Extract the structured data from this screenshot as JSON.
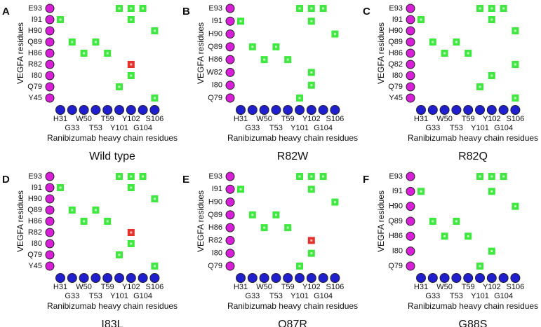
{
  "chart_data": [
    {
      "type": "contact",
      "panel": "A",
      "title": "Wild type",
      "x_label": "Ranibizumab heavy chain residues",
      "y_label": "VEGFA residues",
      "x_color": "#1f1fd0",
      "y_color": "#d81ed8",
      "x_categories": [
        "H31",
        "G33",
        "W50",
        "T53",
        "T59",
        "Y101",
        "Y102",
        "G104",
        "S106"
      ],
      "y_categories": [
        "E93",
        "I91",
        "H90",
        "Q89",
        "H86",
        "R82",
        "I80",
        "Q79",
        "Y45"
      ],
      "contacts": [
        {
          "x": "Y101",
          "y": "E93",
          "color": "#3fe83f"
        },
        {
          "x": "Y102",
          "y": "E93",
          "color": "#3fe83f"
        },
        {
          "x": "G104",
          "y": "E93",
          "color": "#3fe83f"
        },
        {
          "x": "H31",
          "y": "I91",
          "color": "#3fe83f"
        },
        {
          "x": "Y102",
          "y": "I91",
          "color": "#3fe83f"
        },
        {
          "x": "S106",
          "y": "H90",
          "color": "#3fe83f"
        },
        {
          "x": "G33",
          "y": "Q89",
          "color": "#3fe83f"
        },
        {
          "x": "T53",
          "y": "Q89",
          "color": "#3fe83f"
        },
        {
          "x": "W50",
          "y": "H86",
          "color": "#3fe83f"
        },
        {
          "x": "T59",
          "y": "H86",
          "color": "#3fe83f"
        },
        {
          "x": "Y102",
          "y": "R82",
          "color": "#e8302a"
        },
        {
          "x": "Y102",
          "y": "I80",
          "color": "#3fe83f"
        },
        {
          "x": "Y101",
          "y": "Q79",
          "color": "#3fe83f"
        },
        {
          "x": "S106",
          "y": "Y45",
          "color": "#3fe83f"
        }
      ]
    },
    {
      "type": "contact",
      "panel": "B",
      "title": "R82W",
      "x_label": "Ranibizumab heavy chain residues",
      "y_label": "VEGFA residues",
      "x_color": "#1f1fd0",
      "y_color": "#d81ed8",
      "x_categories": [
        "H31",
        "G33",
        "W50",
        "T53",
        "T59",
        "Y101",
        "Y102",
        "G104",
        "S106"
      ],
      "y_categories": [
        "E93",
        "I91",
        "H90",
        "Q89",
        "H86",
        "W82",
        "I80",
        "Q79"
      ],
      "contacts": [
        {
          "x": "Y101",
          "y": "E93",
          "color": "#3fe83f"
        },
        {
          "x": "Y102",
          "y": "E93",
          "color": "#3fe83f"
        },
        {
          "x": "G104",
          "y": "E93",
          "color": "#3fe83f"
        },
        {
          "x": "H31",
          "y": "I91",
          "color": "#3fe83f"
        },
        {
          "x": "Y102",
          "y": "I91",
          "color": "#3fe83f"
        },
        {
          "x": "S106",
          "y": "H90",
          "color": "#3fe83f"
        },
        {
          "x": "G33",
          "y": "Q89",
          "color": "#3fe83f"
        },
        {
          "x": "T53",
          "y": "Q89",
          "color": "#3fe83f"
        },
        {
          "x": "W50",
          "y": "H86",
          "color": "#3fe83f"
        },
        {
          "x": "T59",
          "y": "H86",
          "color": "#3fe83f"
        },
        {
          "x": "Y102",
          "y": "W82",
          "color": "#3fe83f"
        },
        {
          "x": "Y102",
          "y": "I80",
          "color": "#3fe83f"
        },
        {
          "x": "Y101",
          "y": "Q79",
          "color": "#3fe83f"
        }
      ]
    },
    {
      "type": "contact",
      "panel": "C",
      "title": "R82Q",
      "x_label": "Ranibizumab heavy chain residues",
      "y_label": "VEGFA residues",
      "x_color": "#1f1fd0",
      "y_color": "#d81ed8",
      "x_categories": [
        "H31",
        "G33",
        "W50",
        "T53",
        "T59",
        "Y101",
        "Y102",
        "G104",
        "S106"
      ],
      "y_categories": [
        "E93",
        "I91",
        "H90",
        "Q89",
        "H86",
        "Q82",
        "I80",
        "Q79",
        "Y45"
      ],
      "contacts": [
        {
          "x": "Y101",
          "y": "E93",
          "color": "#3fe83f"
        },
        {
          "x": "Y102",
          "y": "E93",
          "color": "#3fe83f"
        },
        {
          "x": "G104",
          "y": "E93",
          "color": "#3fe83f"
        },
        {
          "x": "H31",
          "y": "I91",
          "color": "#3fe83f"
        },
        {
          "x": "Y102",
          "y": "I91",
          "color": "#3fe83f"
        },
        {
          "x": "S106",
          "y": "H90",
          "color": "#3fe83f"
        },
        {
          "x": "G33",
          "y": "Q89",
          "color": "#3fe83f"
        },
        {
          "x": "T53",
          "y": "Q89",
          "color": "#3fe83f"
        },
        {
          "x": "W50",
          "y": "H86",
          "color": "#3fe83f"
        },
        {
          "x": "T59",
          "y": "H86",
          "color": "#3fe83f"
        },
        {
          "x": "S106",
          "y": "Q82",
          "color": "#3fe83f"
        },
        {
          "x": "Y102",
          "y": "I80",
          "color": "#3fe83f"
        },
        {
          "x": "Y101",
          "y": "Q79",
          "color": "#3fe83f"
        },
        {
          "x": "S106",
          "y": "Y45",
          "color": "#3fe83f"
        }
      ]
    },
    {
      "type": "contact",
      "panel": "D",
      "title": "I83L",
      "x_label": "Ranibizumab heavy chain residues",
      "y_label": "VEGFA residues",
      "x_color": "#1f1fd0",
      "y_color": "#d81ed8",
      "x_categories": [
        "H31",
        "G33",
        "W50",
        "T53",
        "T59",
        "Y101",
        "Y102",
        "G104",
        "S106"
      ],
      "y_categories": [
        "E93",
        "I91",
        "H90",
        "Q89",
        "H86",
        "R82",
        "I80",
        "Q79",
        "Y45"
      ],
      "contacts": [
        {
          "x": "Y101",
          "y": "E93",
          "color": "#3fe83f"
        },
        {
          "x": "Y102",
          "y": "E93",
          "color": "#3fe83f"
        },
        {
          "x": "G104",
          "y": "E93",
          "color": "#3fe83f"
        },
        {
          "x": "H31",
          "y": "I91",
          "color": "#3fe83f"
        },
        {
          "x": "Y102",
          "y": "I91",
          "color": "#3fe83f"
        },
        {
          "x": "S106",
          "y": "H90",
          "color": "#3fe83f"
        },
        {
          "x": "G33",
          "y": "Q89",
          "color": "#3fe83f"
        },
        {
          "x": "T53",
          "y": "Q89",
          "color": "#3fe83f"
        },
        {
          "x": "W50",
          "y": "H86",
          "color": "#3fe83f"
        },
        {
          "x": "T59",
          "y": "H86",
          "color": "#3fe83f"
        },
        {
          "x": "Y102",
          "y": "R82",
          "color": "#e8302a"
        },
        {
          "x": "Y102",
          "y": "I80",
          "color": "#3fe83f"
        },
        {
          "x": "Y101",
          "y": "Q79",
          "color": "#3fe83f"
        },
        {
          "x": "S106",
          "y": "Y45",
          "color": "#3fe83f"
        }
      ]
    },
    {
      "type": "contact",
      "panel": "E",
      "title": "Q87R",
      "x_label": "Ranibizumab heavy chain residues",
      "y_label": "VEGFA residues",
      "x_color": "#1f1fd0",
      "y_color": "#d81ed8",
      "x_categories": [
        "H31",
        "G33",
        "W50",
        "T53",
        "T59",
        "Y101",
        "Y102",
        "G104",
        "S106"
      ],
      "y_categories": [
        "E93",
        "I91",
        "H90",
        "Q89",
        "H86",
        "R82",
        "I80",
        "Q79"
      ],
      "contacts": [
        {
          "x": "Y101",
          "y": "E93",
          "color": "#3fe83f"
        },
        {
          "x": "Y102",
          "y": "E93",
          "color": "#3fe83f"
        },
        {
          "x": "G104",
          "y": "E93",
          "color": "#3fe83f"
        },
        {
          "x": "H31",
          "y": "I91",
          "color": "#3fe83f"
        },
        {
          "x": "Y102",
          "y": "I91",
          "color": "#3fe83f"
        },
        {
          "x": "S106",
          "y": "H90",
          "color": "#3fe83f"
        },
        {
          "x": "G33",
          "y": "Q89",
          "color": "#3fe83f"
        },
        {
          "x": "T53",
          "y": "Q89",
          "color": "#3fe83f"
        },
        {
          "x": "W50",
          "y": "H86",
          "color": "#3fe83f"
        },
        {
          "x": "T59",
          "y": "H86",
          "color": "#3fe83f"
        },
        {
          "x": "Y102",
          "y": "R82",
          "color": "#e8302a"
        },
        {
          "x": "Y102",
          "y": "I80",
          "color": "#3fe83f"
        },
        {
          "x": "Y101",
          "y": "Q79",
          "color": "#3fe83f"
        }
      ]
    },
    {
      "type": "contact",
      "panel": "F",
      "title": "G88S",
      "x_label": "Ranibizumab heavy chain residues",
      "y_label": "VEGFA residues",
      "x_color": "#1f1fd0",
      "y_color": "#d81ed8",
      "x_categories": [
        "H31",
        "G33",
        "W50",
        "T53",
        "T59",
        "Y101",
        "Y102",
        "G104",
        "S106"
      ],
      "y_categories": [
        "E93",
        "I91",
        "H90",
        "Q89",
        "H86",
        "I80",
        "Q79"
      ],
      "contacts": [
        {
          "x": "Y101",
          "y": "E93",
          "color": "#3fe83f"
        },
        {
          "x": "Y102",
          "y": "E93",
          "color": "#3fe83f"
        },
        {
          "x": "G104",
          "y": "E93",
          "color": "#3fe83f"
        },
        {
          "x": "H31",
          "y": "I91",
          "color": "#3fe83f"
        },
        {
          "x": "Y102",
          "y": "I91",
          "color": "#3fe83f"
        },
        {
          "x": "S106",
          "y": "H90",
          "color": "#3fe83f"
        },
        {
          "x": "G33",
          "y": "Q89",
          "color": "#3fe83f"
        },
        {
          "x": "T53",
          "y": "Q89",
          "color": "#3fe83f"
        },
        {
          "x": "W50",
          "y": "H86",
          "color": "#3fe83f"
        },
        {
          "x": "T59",
          "y": "H86",
          "color": "#3fe83f"
        },
        {
          "x": "Y102",
          "y": "I80",
          "color": "#3fe83f"
        },
        {
          "x": "Y101",
          "y": "Q79",
          "color": "#3fe83f"
        }
      ]
    }
  ]
}
